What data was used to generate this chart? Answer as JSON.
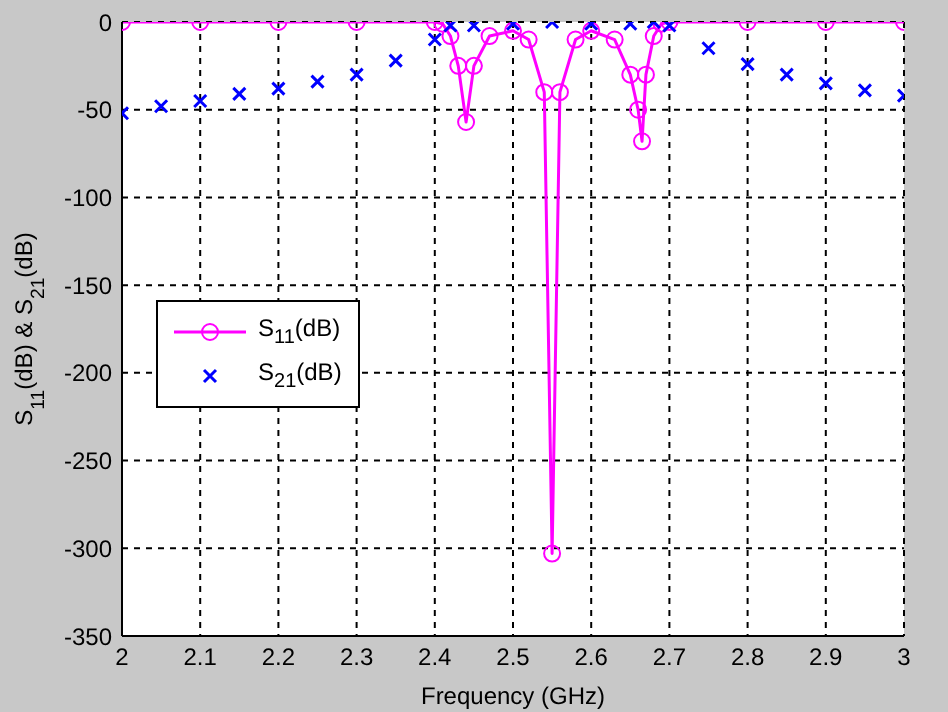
{
  "chart_data": {
    "type": "line",
    "xlabel": "Frequency (GHz)",
    "ylabel": "S$_{11}$(dB) & S$_{21}$(dB)",
    "xlim": [
      2,
      3
    ],
    "xticks": [
      2,
      2.1,
      2.2,
      2.3,
      2.4,
      2.5,
      2.6,
      2.7,
      2.8,
      2.9,
      3
    ],
    "ylim": [
      -350,
      0
    ],
    "yticks": [
      -350,
      -300,
      -250,
      -200,
      -150,
      -100,
      -50,
      0
    ],
    "grid": true,
    "legend": "left",
    "series": [
      {
        "name": "S$_{11}$(dB)",
        "marker": "circle",
        "line_style": "solid",
        "color": "#ff00ff",
        "x": [
          2,
          2.1,
          2.2,
          2.3,
          2.4,
          2.41,
          2.42,
          2.43,
          2.44,
          2.45,
          2.47,
          2.5,
          2.52,
          2.54,
          2.55,
          2.56,
          2.58,
          2.6,
          2.63,
          2.65,
          2.66,
          2.665,
          2.67,
          2.68,
          2.69,
          2.7,
          2.8,
          2.9,
          3
        ],
        "values": [
          0,
          0,
          0,
          0,
          0,
          -1,
          -8,
          -25,
          -57,
          -25,
          -8,
          -5,
          -10,
          -40,
          -303,
          -40,
          -10,
          -5,
          -10,
          -30,
          -50,
          -68,
          -30,
          -8,
          -1,
          0,
          0,
          0,
          0
        ]
      },
      {
        "name": "S$_{21}$(dB)",
        "type": "scatter",
        "marker": "cross",
        "color": "#0000ff",
        "x": [
          2,
          2.05,
          2.1,
          2.15,
          2.2,
          2.25,
          2.3,
          2.35,
          2.4,
          2.42,
          2.45,
          2.5,
          2.55,
          2.6,
          2.65,
          2.68,
          2.7,
          2.75,
          2.8,
          2.85,
          2.9,
          2.95,
          3
        ],
        "values": [
          -52,
          -48,
          -45,
          -41,
          -38,
          -34,
          -30,
          -22,
          -10,
          -2,
          -2,
          -1,
          0,
          -1,
          -1,
          0,
          -2,
          -15,
          -24,
          -30,
          -35,
          -39,
          -42
        ]
      }
    ]
  }
}
